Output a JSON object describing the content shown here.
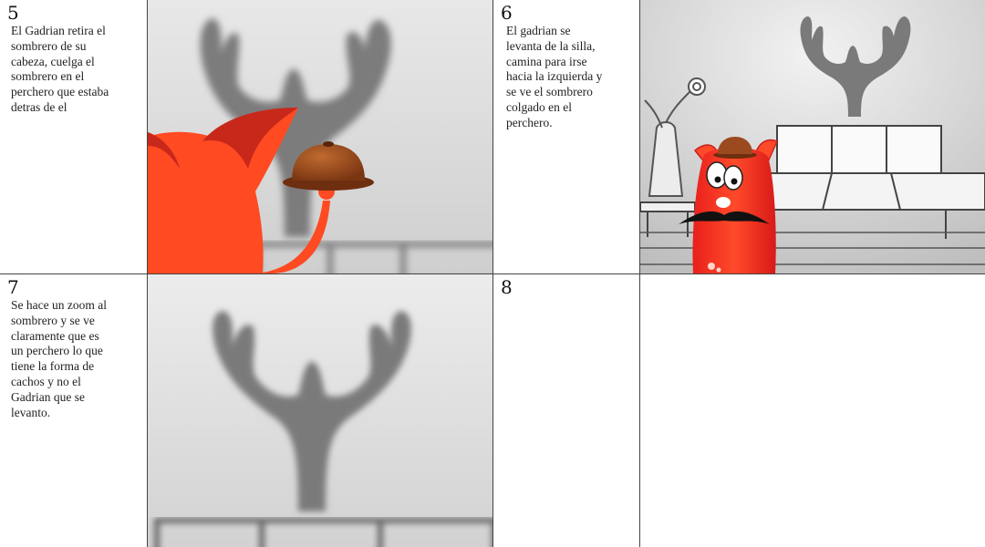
{
  "panels": [
    {
      "number": "5",
      "description": "El Gadrian retira el\nsombrero de su\ncabeza, cuelga el\nsombrero en el\nperchero que estaba\ndetras de el"
    },
    {
      "number": "6",
      "description": "El gadrian se\nlevanta de la silla,\ncamina para irse\nhacia la izquierda y\nse ve el sombrero\ncolgado en el\nperchero."
    },
    {
      "number": "7",
      "description": "Se hace un zoom al\nsombrero y se ve\nclaramente que es\nun perchero lo que\ntiene la forma de\ncachos y no el\nGadrian que se\nlevanto."
    },
    {
      "number": "8",
      "description": ""
    }
  ],
  "colors": {
    "character_red": "#ff4a22",
    "hat_brown": "#9b4a1f",
    "antler_gray": "#787878"
  }
}
